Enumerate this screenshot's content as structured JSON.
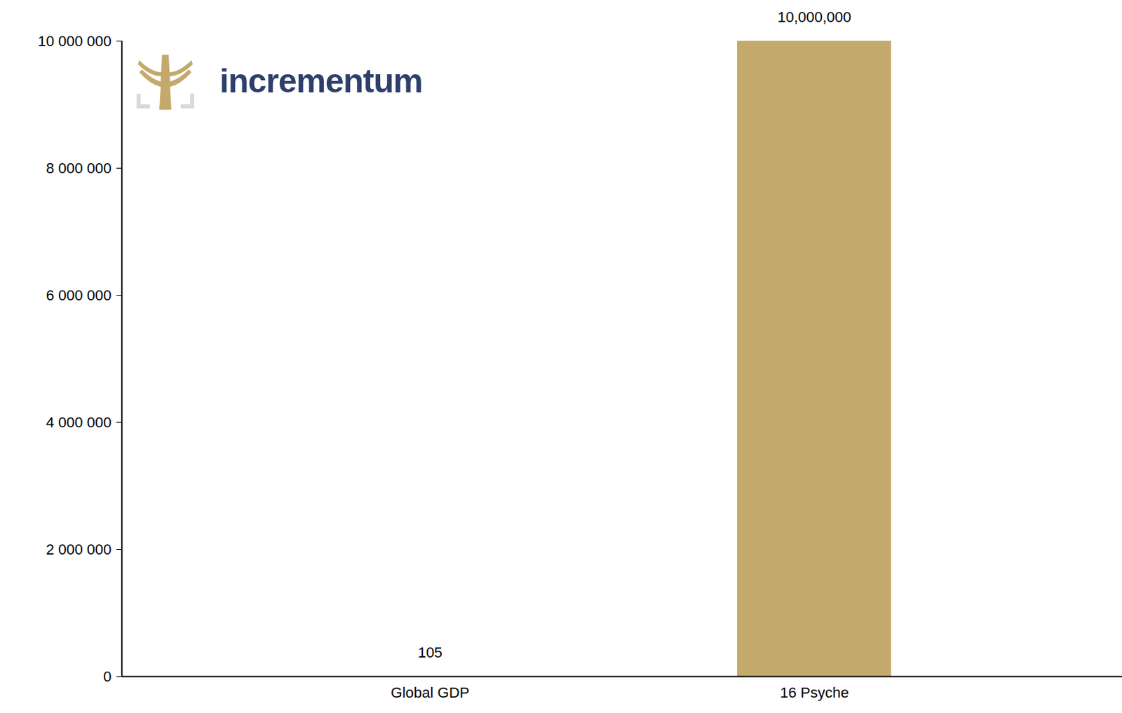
{
  "chart_data": {
    "type": "bar",
    "categories": [
      "Global GDP",
      "16 Psyche"
    ],
    "values": [
      105,
      10000000
    ],
    "value_labels": [
      "105",
      "10,000,000"
    ],
    "data_labels": true,
    "color": "#c3a96b",
    "ylim": [
      0,
      10000000
    ],
    "yticks": [
      {
        "value": 0,
        "label": "0"
      },
      {
        "value": 2000000,
        "label": "2 000 000"
      },
      {
        "value": 4000000,
        "label": "4 000 000"
      },
      {
        "value": 6000000,
        "label": "6 000 000"
      },
      {
        "value": 8000000,
        "label": "8 000 000"
      },
      {
        "value": 10000000,
        "label": "10 000 000"
      }
    ],
    "grid": false,
    "annotations": [
      "incrementum"
    ]
  }
}
